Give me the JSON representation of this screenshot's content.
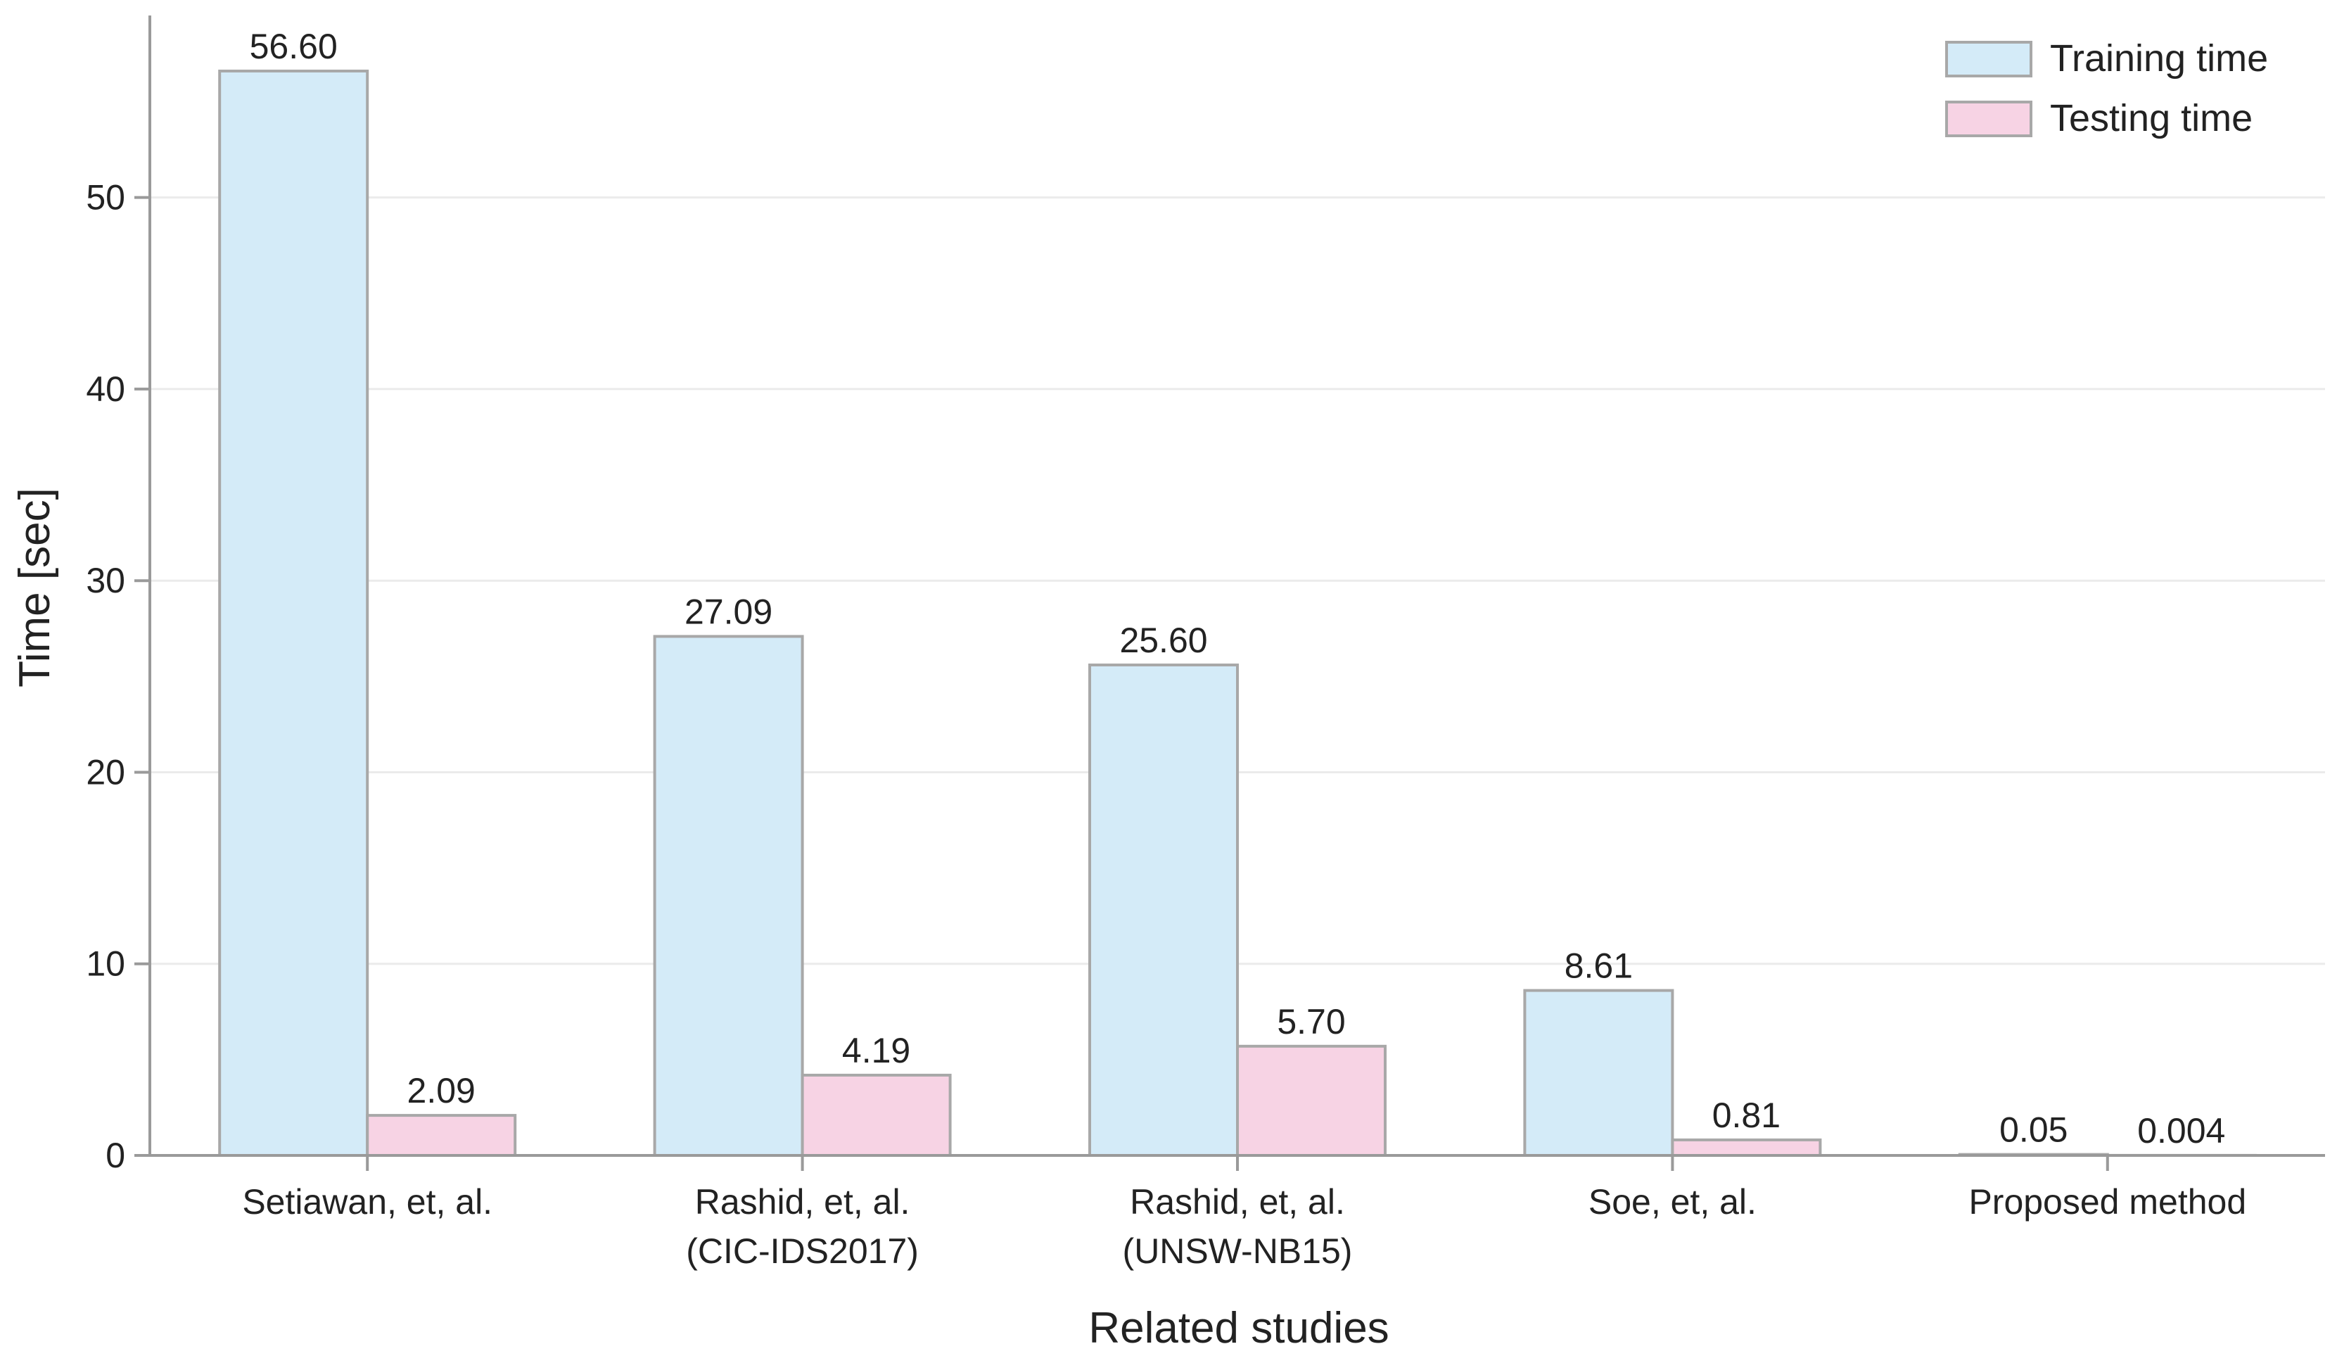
{
  "chart_data": {
    "type": "bar",
    "title": "",
    "xlabel": "Related studies",
    "ylabel": "Time [sec]",
    "ylim": [
      0,
      59.5
    ],
    "yticks": [
      0,
      10,
      20,
      30,
      40,
      50
    ],
    "grid": "horizontal",
    "legend_position": "top-right",
    "categories": [
      [
        "Setiawan, et, al."
      ],
      [
        "Rashid, et, al.",
        "(CIC-IDS2017)"
      ],
      [
        "Rashid, et, al.",
        "(UNSW-NB15)"
      ],
      [
        "Soe, et, al."
      ],
      [
        "Proposed method"
      ]
    ],
    "series": [
      {
        "name": "Training time",
        "color": "#d4ebf8",
        "values": [
          56.6,
          27.09,
          25.6,
          8.61,
          0.05
        ],
        "labels": [
          "56.60",
          "27.09",
          "25.60",
          "8.61",
          "0.05"
        ]
      },
      {
        "name": "Testing time",
        "color": "#f7d3e4",
        "values": [
          2.09,
          4.19,
          5.7,
          0.81,
          0.004
        ],
        "labels": [
          "2.09",
          "4.19",
          "5.70",
          "0.81",
          "0.004"
        ]
      }
    ]
  }
}
